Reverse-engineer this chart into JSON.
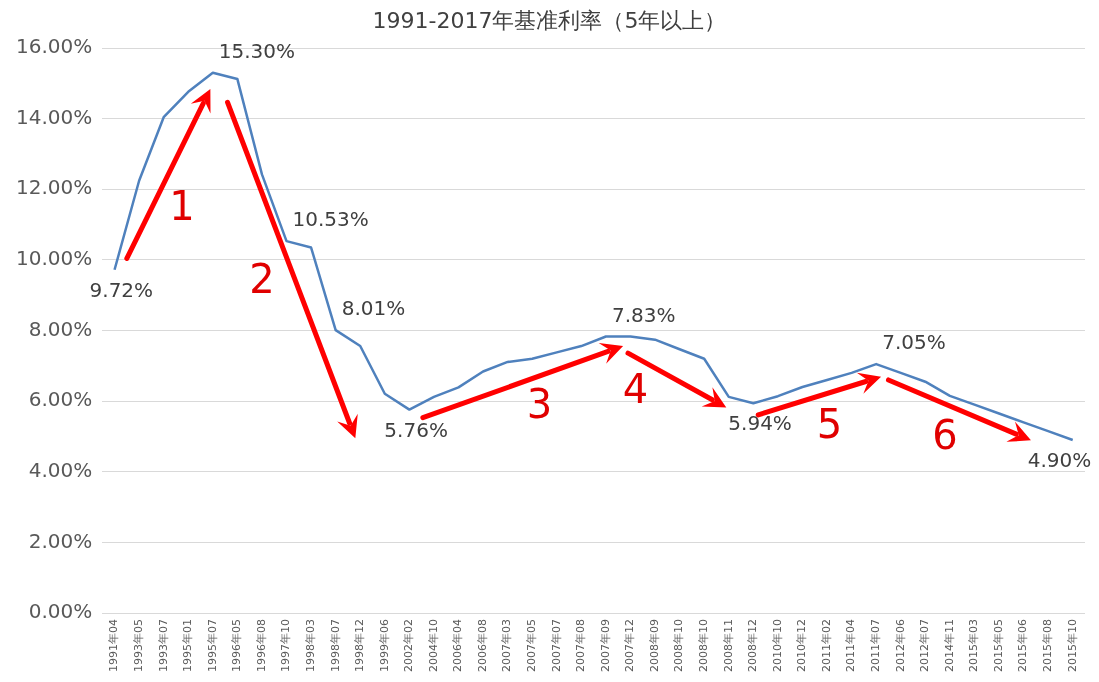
{
  "chart_data": {
    "type": "line",
    "title": "1991-2017年基准利率（5年以上）",
    "categories": [
      "1991年04",
      "1993年05",
      "1993年07",
      "1995年01",
      "1995年07",
      "1996年05",
      "1996年08",
      "1997年10",
      "1998年03",
      "1998年07",
      "1998年12",
      "1999年06",
      "2002年02",
      "2004年10",
      "2006年04",
      "2006年08",
      "2007年03",
      "2007年05",
      "2007年07",
      "2007年08",
      "2007年09",
      "2007年12",
      "2008年09",
      "2008年10",
      "2008年10",
      "2008年11",
      "2008年12",
      "2010年10",
      "2010年12",
      "2011年02",
      "2011年04",
      "2011年07",
      "2012年06",
      "2012年07",
      "2014年11",
      "2015年03",
      "2015年05",
      "2015年06",
      "2015年08",
      "2015年10"
    ],
    "series": [
      {
        "color": "#4f81bd",
        "values": [
          9.72,
          12.24,
          14.04,
          14.76,
          15.3,
          15.12,
          12.42,
          10.53,
          10.35,
          8.01,
          7.56,
          6.21,
          5.76,
          6.12,
          6.39,
          6.84,
          7.11,
          7.2,
          7.38,
          7.56,
          7.83,
          7.83,
          7.74,
          7.47,
          7.2,
          6.12,
          5.94,
          6.14,
          6.4,
          6.6,
          6.8,
          7.05,
          6.8,
          6.55,
          6.15,
          5.9,
          5.65,
          5.4,
          5.15,
          4.9
        ],
        "value_labels": [
          "9.72%",
          null,
          null,
          null,
          "15.30%",
          null,
          null,
          "10.53%",
          null,
          "8.01%",
          null,
          null,
          "5.76%",
          null,
          null,
          null,
          null,
          null,
          null,
          null,
          "7.83%",
          null,
          null,
          null,
          null,
          null,
          "5.94%",
          null,
          null,
          null,
          null,
          "7.05%",
          null,
          null,
          null,
          null,
          null,
          null,
          null,
          "4.90%"
        ]
      }
    ],
    "ylim": [
      0,
      16
    ],
    "yticks": [
      {
        "value": 0,
        "label": "0.00%"
      },
      {
        "value": 2,
        "label": "2.00%"
      },
      {
        "value": 4,
        "label": "4.00%"
      },
      {
        "value": 6,
        "label": "6.00%"
      },
      {
        "value": 8,
        "label": "8.00%"
      },
      {
        "value": 10,
        "label": "10.00%"
      },
      {
        "value": 12,
        "label": "12.00%"
      },
      {
        "value": 14,
        "label": "14.00%"
      },
      {
        "value": 16,
        "label": "16.00%"
      }
    ],
    "grid": "y",
    "marker": "none",
    "line_style": "solid",
    "annotations": [
      "1",
      "2",
      "3",
      "4",
      "5",
      "6"
    ]
  }
}
